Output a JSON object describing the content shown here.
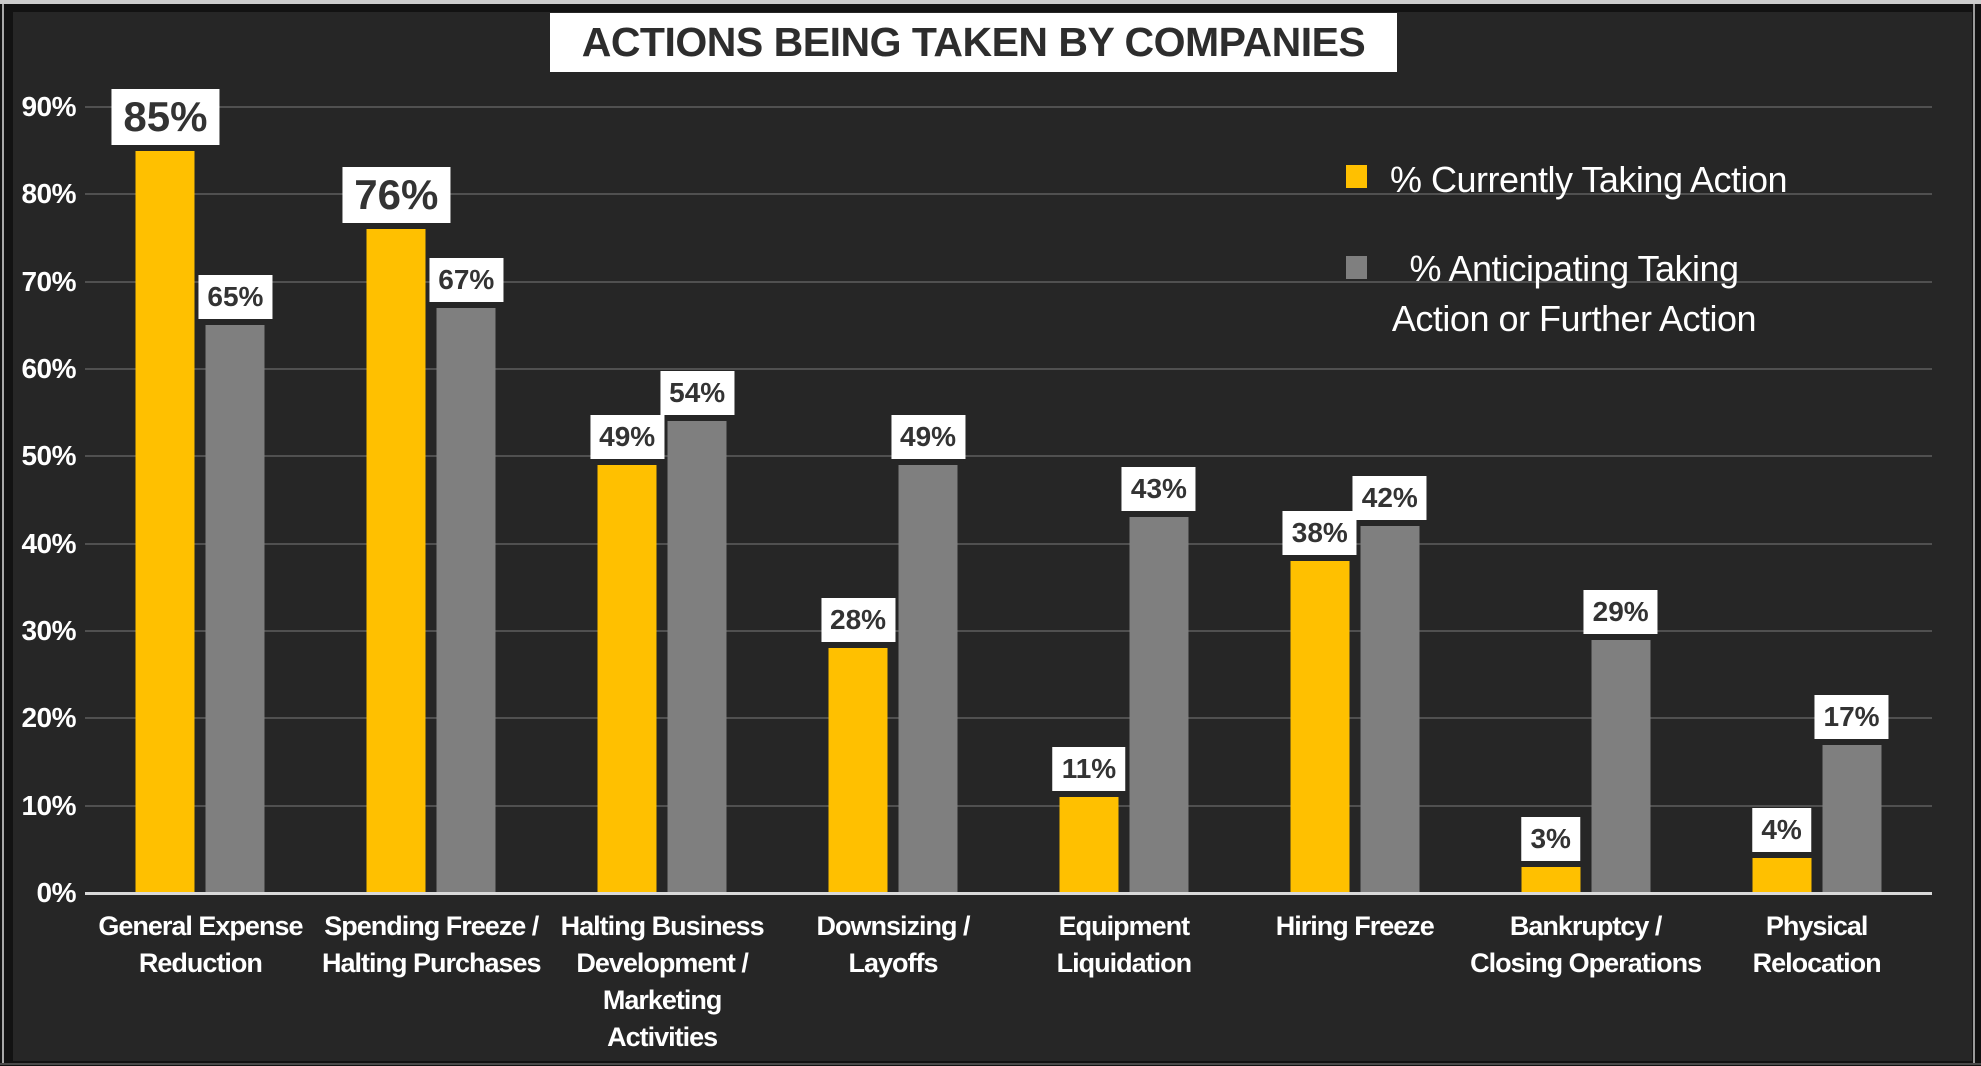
{
  "slide_title": "ACTIONS BEING TAKEN BY COMPANIES",
  "legend": {
    "items": [
      {
        "key": "currently",
        "swatch_color": "#FFC000",
        "lines": [
          "% Currently Taking Action"
        ]
      },
      {
        "key": "anticipating",
        "swatch_color": "#7F7F7F",
        "lines": [
          "% Anticipating Taking",
          "Action or Further Action"
        ]
      }
    ]
  },
  "axes": {
    "y_ticks": [
      "90%",
      "80%",
      "70%",
      "60%",
      "50%",
      "40%",
      "30%",
      "20%",
      "10%",
      "0%"
    ]
  },
  "chart_data": {
    "type": "bar",
    "title": "ACTIONS BEING TAKEN BY COMPANIES",
    "categories": [
      "General Expense Reduction",
      "Spending Freeze / Halting Purchases",
      "Halting Business Development / Marketing Activities",
      "Downsizing / Layoffs",
      "Equipment Liquidation",
      "Hiring Freeze",
      "Bankruptcy / Closing Operations",
      "Physical Relocation"
    ],
    "category_label_lines": [
      [
        "General Expense",
        "Reduction"
      ],
      [
        "Spending Freeze /",
        "Halting Purchases"
      ],
      [
        "Halting Business",
        "Development /",
        "Marketing",
        "Activities"
      ],
      [
        "Downsizing /",
        "Layoffs"
      ],
      [
        "Equipment",
        "Liquidation"
      ],
      [
        "Hiring Freeze"
      ],
      [
        "Bankruptcy /",
        "Closing Operations"
      ],
      [
        "Physical",
        "Relocation"
      ]
    ],
    "series": [
      {
        "name": "% Currently Taking Action",
        "color": "#FFC000",
        "values": [
          85,
          76,
          49,
          28,
          11,
          38,
          3,
          4
        ]
      },
      {
        "name": "% Anticipating Taking Action or Further Action",
        "color": "#7F7F7F",
        "values": [
          65,
          67,
          54,
          49,
          43,
          42,
          29,
          17
        ]
      }
    ],
    "value_label_format": "{v}%",
    "xlabel": "",
    "ylabel": "",
    "ylim": [
      0,
      90
    ],
    "ytick_step": 10,
    "grid": true,
    "legend_position": "top-right",
    "background": "#262626"
  },
  "colors": {
    "background": "#262626",
    "series_currently": "#FFC000",
    "series_anticipating": "#7F7F7F",
    "gridline": "#505050",
    "baseline": "#D9D9D9",
    "axis_text": "#FFFFFF",
    "value_label_bg": "#FFFFFF",
    "value_label_text": "#333333",
    "title_bg": "#FFFFFF",
    "title_text": "#2D2D2D"
  }
}
